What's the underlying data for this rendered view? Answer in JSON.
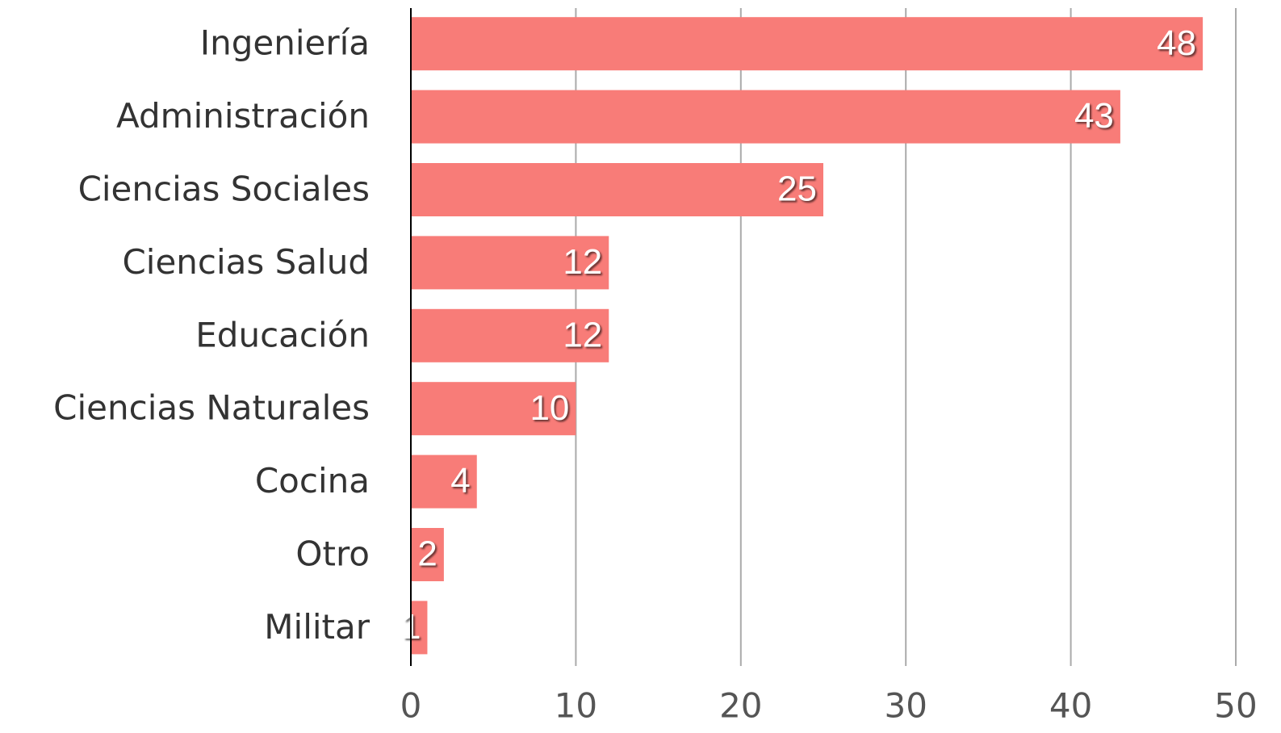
{
  "chart_data": {
    "type": "bar",
    "orientation": "horizontal",
    "categories": [
      "Ingeniería",
      "Administración",
      "Ciencias Sociales",
      "Ciencias Salud",
      "Educación",
      "Ciencias Naturales",
      "Cocina",
      "Otro",
      "Militar"
    ],
    "values": [
      48,
      43,
      25,
      12,
      12,
      10,
      4,
      2,
      1
    ],
    "color": "#f87c78",
    "xlim": [
      0,
      50
    ],
    "xticks": [
      0,
      10,
      20,
      30,
      40,
      50
    ],
    "grid": true
  }
}
